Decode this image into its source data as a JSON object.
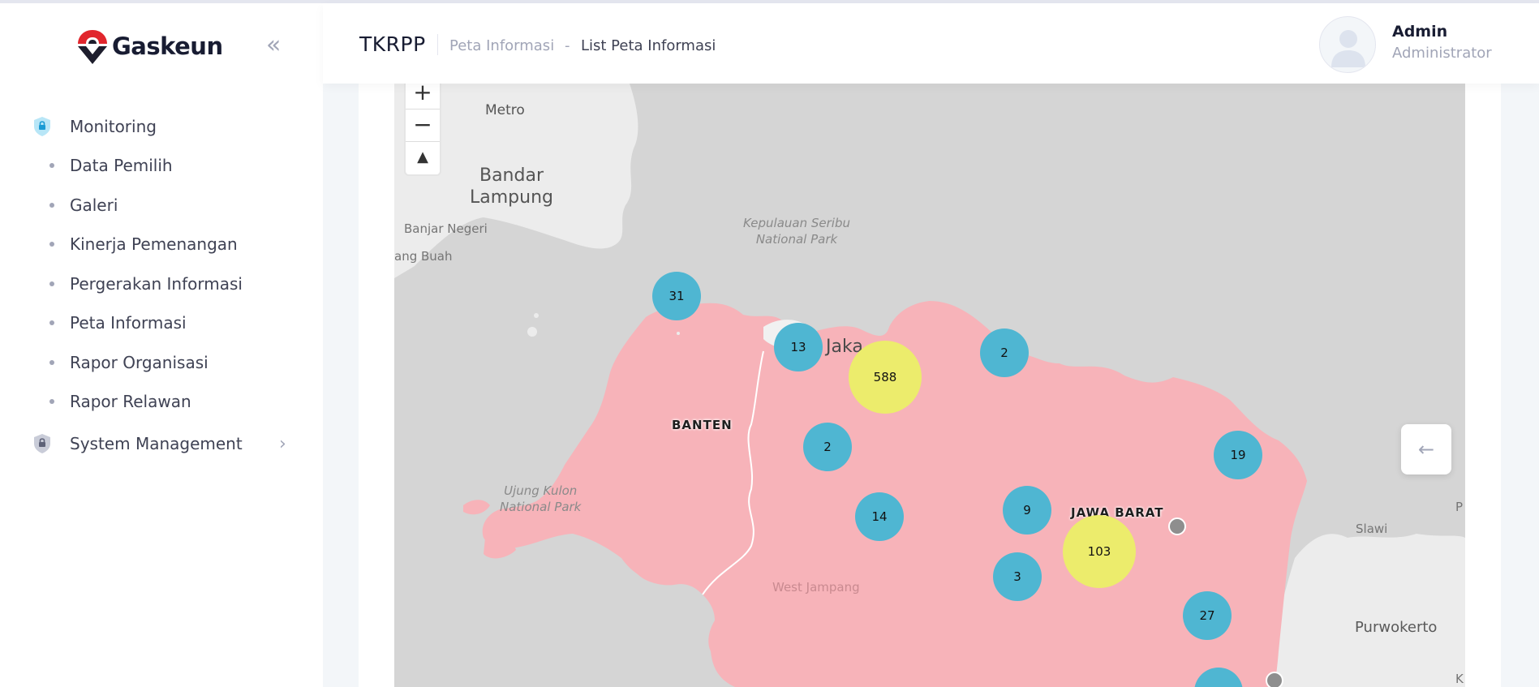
{
  "brand": {
    "name": "Gaskeun",
    "color": "#e1262d"
  },
  "sidebar": {
    "collapse_icon": "double-chevron-left-icon",
    "items": [
      {
        "label": "Monitoring",
        "icon": "shield-lock-icon",
        "active": true
      },
      {
        "label": "Data Pemilih"
      },
      {
        "label": "Galeri"
      },
      {
        "label": "Kinerja Pemenangan"
      },
      {
        "label": "Pergerakan Informasi"
      },
      {
        "label": "Peta Informasi"
      },
      {
        "label": "Rapor Organisasi"
      },
      {
        "label": "Rapor Relawan"
      },
      {
        "label": "System Management",
        "icon": "shield-lock-icon",
        "has_submenu": true
      }
    ]
  },
  "header": {
    "title": "TKRPP",
    "breadcrumb": [
      "Peta Informasi",
      "List Peta Informasi"
    ],
    "breadcrumb_separator": "-",
    "user": {
      "name": "Admin",
      "role": "Administrator"
    }
  },
  "map": {
    "zoom_in": "+",
    "zoom_out": "−",
    "compass": "▲",
    "places": {
      "metro": "Metro",
      "bandar_lampung_1": "Bandar",
      "bandar_lampung_2": "Lampung",
      "banjar_negeri": "Banjar Negeri",
      "kota_agung": "ang Buah",
      "seribu_1": "Kepulauan Seribu",
      "seribu_2": "National Park",
      "jakarta": "Jaka",
      "banten": "BANTEN",
      "ujung_kulon_1": "Ujung Kulon",
      "ujung_kulon_2": "National Park",
      "jawa_barat": "JAWA BARAT",
      "west_jampang": "West Jampang",
      "slawi": "Slawi",
      "purwokerto": "Purwokerto",
      "edge_p": "P",
      "edge_k": "K"
    },
    "clusters": [
      {
        "count": "31",
        "color": "blue"
      },
      {
        "count": "13",
        "color": "blue"
      },
      {
        "count": "588",
        "color": "yellow"
      },
      {
        "count": "2",
        "color": "blue"
      },
      {
        "count": "2",
        "color": "blue"
      },
      {
        "count": "19",
        "color": "blue"
      },
      {
        "count": "14",
        "color": "blue"
      },
      {
        "count": "9",
        "color": "blue"
      },
      {
        "count": "103",
        "color": "yellow"
      },
      {
        "count": "3",
        "color": "blue"
      },
      {
        "count": "27",
        "color": "blue"
      }
    ],
    "region_fill": "#f7b3b9",
    "side_toggle_icon": "arrow-left-icon"
  }
}
